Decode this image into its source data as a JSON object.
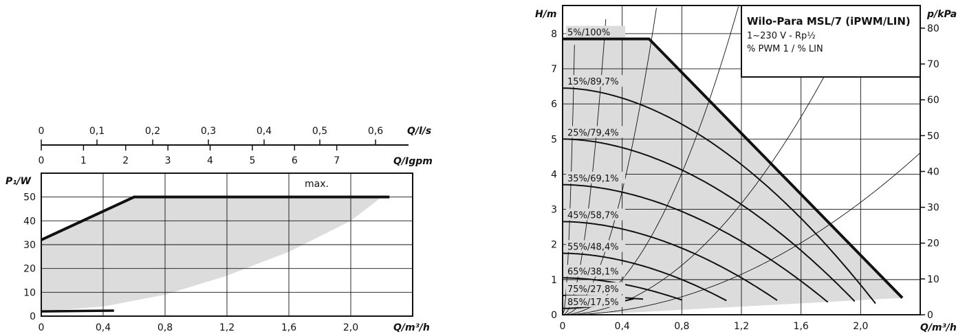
{
  "chart_data": [
    {
      "type": "area",
      "x_unit_label": "Q/m³/h",
      "y_unit_label": "P₁/W",
      "x_ticks": [
        "0",
        "0,4",
        "0,8",
        "1,2",
        "1,6",
        "2,0"
      ],
      "y_ticks": [
        "0",
        "10",
        "20",
        "30",
        "40",
        "50"
      ],
      "xlim": [
        0,
        2.4
      ],
      "ylim": [
        0,
        60
      ],
      "top_axes": [
        {
          "label": "Q/l/s",
          "ticks": [
            "0",
            "0,1",
            "0,2",
            "0,3",
            "0,4",
            "0,5",
            "0,6"
          ]
        },
        {
          "label": "Q/Igpm",
          "ticks": [
            "0",
            "1",
            "2",
            "3",
            "4",
            "5",
            "6",
            "7"
          ]
        }
      ],
      "annotation": "max.",
      "series": [
        {
          "name": "max.",
          "x": [
            0,
            0.6,
            2.25
          ],
          "y": [
            32,
            50,
            50
          ]
        },
        {
          "x": [
            0,
            0.47
          ],
          "y": [
            2,
            2.3
          ]
        }
      ],
      "envelope_lower": {
        "x": [
          0,
          0.4,
          0.8,
          1.2,
          1.6,
          2.0,
          2.2
        ],
        "y": [
          2,
          4,
          9,
          17,
          27,
          40,
          50
        ]
      },
      "grid": true
    },
    {
      "type": "line",
      "x_unit_label": "Q/m³/h",
      "y_unit_label": "H/m",
      "y2_unit_label": "p/kPa",
      "x_ticks": [
        "0",
        "0,4",
        "0,8",
        "1,2",
        "1,6",
        "2,0"
      ],
      "y_ticks": [
        "0",
        "1",
        "2",
        "3",
        "4",
        "5",
        "6",
        "7",
        "8"
      ],
      "y2_ticks": [
        "0",
        "10",
        "20",
        "30",
        "40",
        "50",
        "60",
        "70",
        "80"
      ],
      "xlim": [
        0,
        2.4
      ],
      "ylim": [
        0,
        8.8
      ],
      "info_box": {
        "title": "Wilo-Para MSL/7 (iPWM/LIN)",
        "line1": "1~230 V - Rp½",
        "line2": "% PWM 1 / % LIN"
      },
      "series": [
        {
          "name": "5%/100%",
          "head_at_zero": 7.85,
          "end_flow": 2.2
        },
        {
          "name": "15%/89,7%",
          "head_at_zero": 6.45,
          "end_flow": 2.1
        },
        {
          "name": "25%/79,4%",
          "head_at_zero": 5.0,
          "end_flow": 1.97
        },
        {
          "name": "35%/69,1%",
          "head_at_zero": 3.7,
          "end_flow": 1.78
        },
        {
          "name": "45%/58,7%",
          "head_at_zero": 2.65,
          "end_flow": 1.45
        },
        {
          "name": "55%/48,4%",
          "head_at_zero": 1.75,
          "end_flow": 1.1
        },
        {
          "name": "65%/38,1%",
          "head_at_zero": 1.05,
          "end_flow": 0.8
        },
        {
          "name": "75%/27,8%",
          "head_at_zero": 0.55,
          "end_flow": 0.55
        },
        {
          "name": "85%/17,5%",
          "head_at_zero": 0.18,
          "end_flow": 0.48
        }
      ],
      "max_curve": {
        "x": [
          0,
          0.58,
          2.28
        ],
        "y": [
          7.85,
          7.85,
          0.48
        ]
      },
      "system_curves_k": [
        1200,
        100,
        22,
        6.3,
        2.2,
        0.8
      ],
      "grid": true
    }
  ]
}
